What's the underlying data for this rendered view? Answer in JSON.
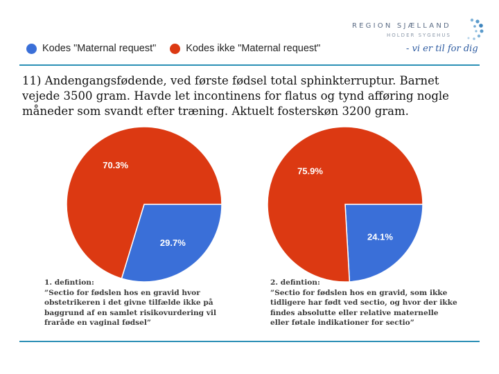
{
  "logo": {
    "name": "REGION SJÆLLAND",
    "sub": "HOLDER SYGEHUS",
    "tagline": "- vi er til for dig"
  },
  "legend": {
    "items": [
      {
        "label": "Kodes \"Maternal request\"",
        "color": "#3a6fd8"
      },
      {
        "label": "Kodes ikke \"Maternal request\"",
        "color": "#dc3912"
      }
    ]
  },
  "case_text": "11) Andengangsfødende, ved første fødsel total sphinkterruptur. Barnet vejede 3500 gram. Havde let incontinens for flatus og tynd afføring nogle måneder som svandt efter træning. Aktuelt fosterskøn 3200 gram.",
  "chart_data": [
    {
      "type": "pie",
      "title": "",
      "slices": [
        {
          "label": "Kodes \"Maternal request\"",
          "value": 29.7,
          "label_text": "29.7%",
          "color": "#3a6fd8"
        },
        {
          "label": "Kodes ikke \"Maternal request\"",
          "value": 70.3,
          "label_text": "70.3%",
          "color": "#dc3912"
        }
      ]
    },
    {
      "type": "pie",
      "title": "",
      "slices": [
        {
          "label": "Kodes \"Maternal request\"",
          "value": 24.1,
          "label_text": "24.1%",
          "color": "#3a6fd8"
        },
        {
          "label": "Kodes ikke \"Maternal request\"",
          "value": 75.9,
          "label_text": "75.9%",
          "color": "#dc3912"
        }
      ]
    }
  ],
  "definitions": [
    {
      "title": "1. defintion:",
      "body": "”Sectio for fødslen hos en gravid hvor\nobstetrikeren  i det givne tilfælde ikke på\nbaggrund af en samlet risikovurdering vil\nfraråde en vaginal fødsel”"
    },
    {
      "title": "2. defintion:",
      "body": "”Sectio for fødslen hos en gravid, som ikke\ntidligere har født ved sectio, og hvor der ikke\nfindes absolutte eller relative maternelle\neller føtale indikationer  for sectio”"
    }
  ]
}
